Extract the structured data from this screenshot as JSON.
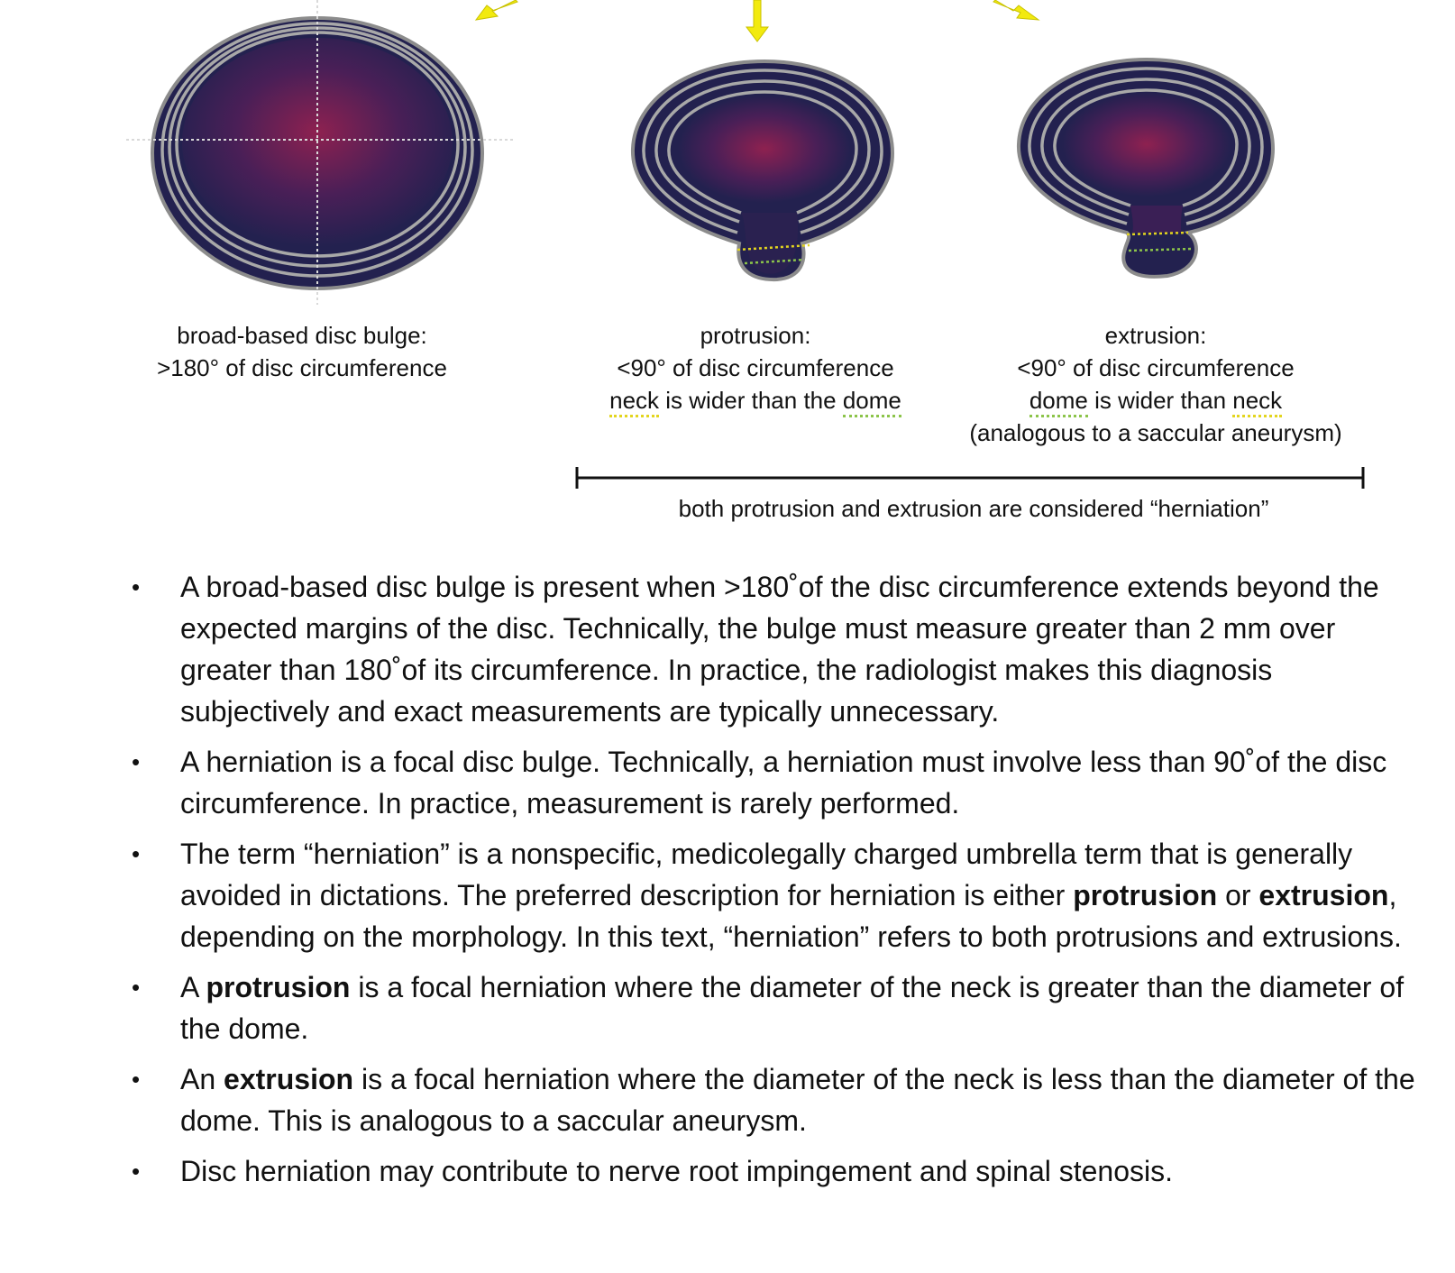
{
  "captions": {
    "bulge": {
      "title": "broad-based disc bulge:",
      "line2": ">180° of disc circumference"
    },
    "protrusion": {
      "title": "protrusion:",
      "line2": "<90° of disc circumference",
      "line3_a": "neck",
      "line3_b": " is wider than the ",
      "line3_c": "dome"
    },
    "extrusion": {
      "title": "extrusion:",
      "line2": "<90° of disc circumference",
      "line3_a": "dome",
      "line3_b": " is wider than ",
      "line3_c": "neck",
      "line4": "(analogous to a saccular aneurysm)"
    }
  },
  "range_label": "both protrusion and extrusion are considered “herniation”",
  "bullets": [
    {
      "p1": "A broad-based disc bulge is present when >180˚of the disc circumference extends beyond the expected margins of the disc. Technically, the bulge must measure greater than 2 mm over greater than 180˚of its circumference. In practice, the radiologist makes this diagnosis subjectively and exact measurements are typically unnecessary."
    },
    {
      "p1": "A herniation is a focal disc bulge. Technically, a herniation must involve less than 90˚of the disc circumference. In practice, measurement is rarely performed."
    },
    {
      "p1": "The term “herniation” is a nonspecific, medicolegally charged umbrella term that is generally avoided in dictations. The preferred description for herniation is either ",
      "b1": "protrusion",
      "p2": " or ",
      "b2": "extrusion",
      "p3": ", depending on the morphology. In this text, “herniation” refers to both protrusions and extrusions."
    },
    {
      "p1": "A ",
      "b1": "protrusion",
      "p2": " is a focal herniation where the diameter of the neck is greater than the diameter of the dome."
    },
    {
      "p1": "An ",
      "b1": "extrusion",
      "p2": " is a focal herniation where the diameter of the neck is less than the diameter of the dome. This is analogous to a saccular aneurysm."
    },
    {
      "p1": "Disc herniation may contribute to nerve root impingement and spinal stenosis."
    }
  ],
  "bullet_glyph": "•",
  "colors": {
    "disc_outer": "#23214f",
    "disc_center": "#8e2150",
    "ring": "#9c9c9c",
    "arrow": "#f2ea0f",
    "dome_line": "#e3d51f",
    "neck_line": "#8cc44a"
  }
}
